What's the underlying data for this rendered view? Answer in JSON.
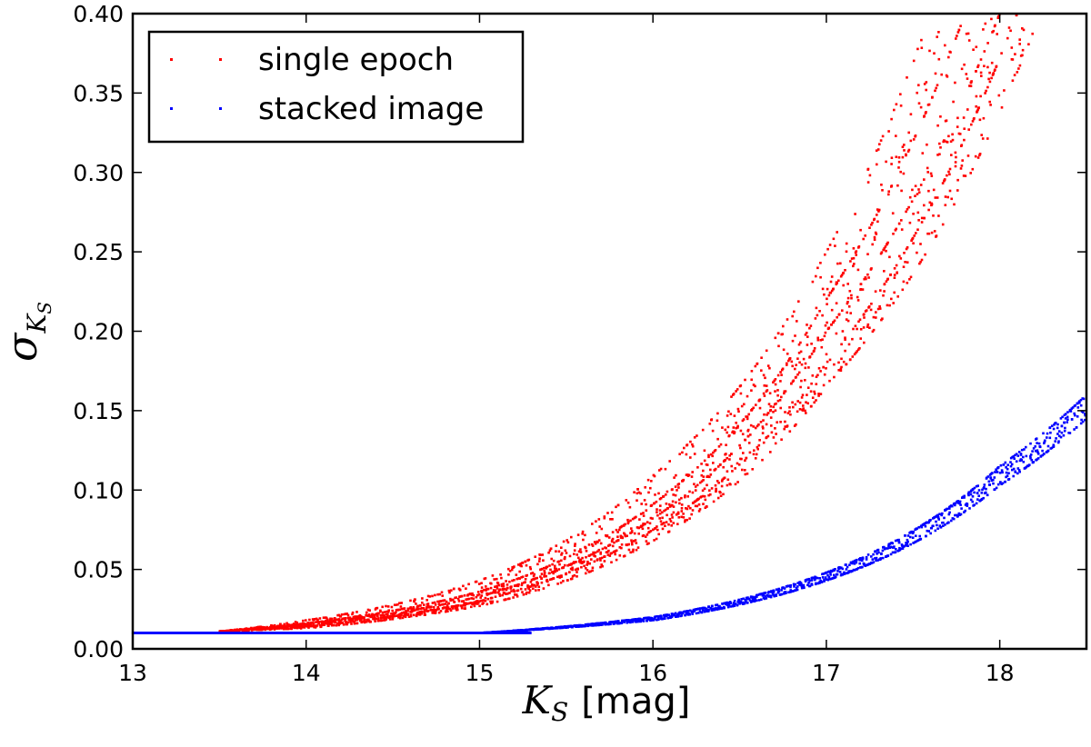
{
  "chart_data": {
    "type": "scatter",
    "xlim": [
      13,
      18.5
    ],
    "ylim": [
      0.0,
      0.4
    ],
    "xticks": [
      "13",
      "14",
      "15",
      "16",
      "17",
      "18"
    ],
    "yticks": [
      "0.00",
      "0.05",
      "0.10",
      "0.15",
      "0.20",
      "0.25",
      "0.30",
      "0.35",
      "0.40"
    ],
    "xlabel": {
      "main": "K",
      "sub": "S",
      "unit": "[mag]"
    },
    "ylabel": {
      "main": "σ",
      "sub1": "K",
      "sub2": "S"
    },
    "legend_position": "top-left",
    "series": [
      {
        "name": "single epoch",
        "color": "#ff0000",
        "x_range": [
          13.5,
          18.2
        ],
        "floor": 0.01,
        "curves": [
          {
            "x": [
              13.5,
              14.0,
              15.0,
              16.0,
              17.0,
              17.6
            ],
            "y": [
              0.011,
              0.018,
              0.043,
              0.109,
              0.25,
              0.4
            ]
          },
          {
            "x": [
              13.5,
              14.0,
              15.0,
              16.0,
              17.0,
              17.8
            ],
            "y": [
              0.011,
              0.016,
              0.036,
              0.091,
              0.22,
              0.4
            ]
          },
          {
            "x": [
              13.5,
              14.0,
              15.0,
              16.0,
              17.0,
              18.0
            ],
            "y": [
              0.011,
              0.015,
              0.033,
              0.082,
              0.2,
              0.4
            ]
          },
          {
            "x": [
              13.5,
              14.0,
              15.0,
              16.0,
              17.0,
              18.1
            ],
            "y": [
              0.011,
              0.014,
              0.03,
              0.075,
              0.18,
              0.4
            ]
          },
          {
            "x": [
              13.5,
              14.0,
              15.0,
              16.0,
              17.0,
              18.2
            ],
            "y": [
              0.011,
              0.013,
              0.027,
              0.068,
              0.165,
              0.39
            ]
          }
        ]
      },
      {
        "name": "stacked image",
        "color": "#0000ff",
        "x_range": [
          13.0,
          18.5
        ],
        "floor": 0.01,
        "curves": [
          {
            "x": [
              13.0,
              15.0,
              16.0,
              17.0,
              18.0,
              18.5
            ],
            "y": [
              0.01,
              0.01,
              0.02,
              0.048,
              0.115,
              0.16
            ]
          },
          {
            "x": [
              13.0,
              15.0,
              16.0,
              17.0,
              18.0,
              18.5
            ],
            "y": [
              0.01,
              0.01,
              0.018,
              0.043,
              0.103,
              0.145
            ]
          }
        ]
      }
    ]
  }
}
